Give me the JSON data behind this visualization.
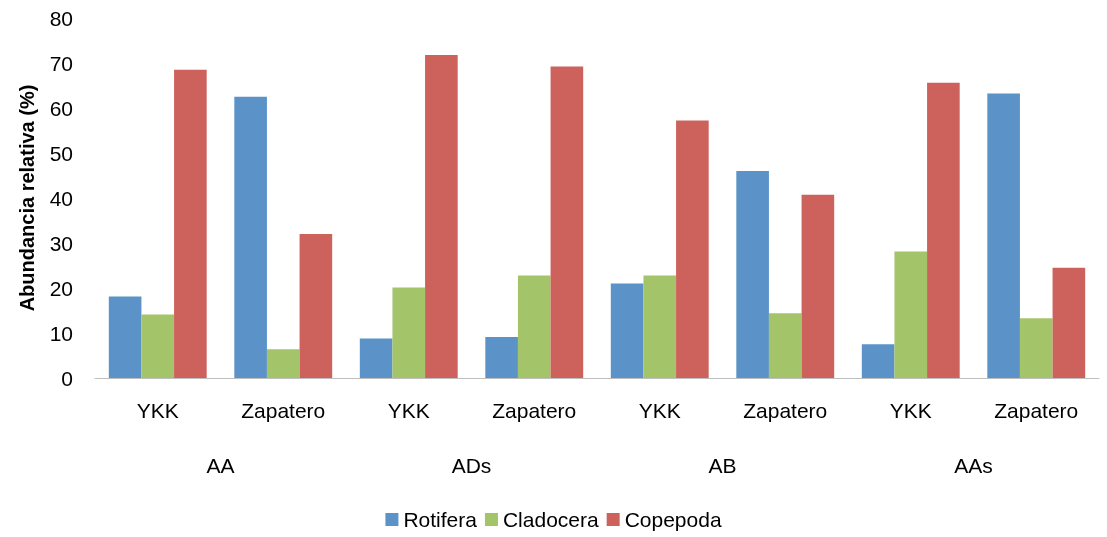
{
  "chart_data": {
    "type": "bar",
    "ylabel": "Abundancia relativa (%)",
    "categories": [
      "YKK",
      "Zapatero",
      "YKK",
      "Zapatero",
      "YKK",
      "Zapatero",
      "YKK",
      "Zapatero"
    ],
    "series": [
      {
        "name": "Rotifera",
        "color": "#5b93c9",
        "values": [
          18.1,
          62.5,
          8.8,
          9.1,
          21.0,
          46.0,
          7.5,
          63.2
        ]
      },
      {
        "name": "Cladocera",
        "color": "#a4c46a",
        "values": [
          14.1,
          6.4,
          20.1,
          22.8,
          22.8,
          14.4,
          28.1,
          13.3
        ]
      },
      {
        "name": "Copepoda",
        "color": "#cd625c",
        "values": [
          68.5,
          32.0,
          71.8,
          69.2,
          57.2,
          40.7,
          65.6,
          24.5
        ]
      }
    ],
    "annotations": [
      "AA",
      "ADs",
      "AB",
      "AAs"
    ],
    "ylim": [
      0,
      80
    ],
    "yticks": [
      0,
      10,
      20,
      30,
      40,
      50,
      60,
      70,
      80
    ],
    "grid": false,
    "legend": "bottom"
  }
}
